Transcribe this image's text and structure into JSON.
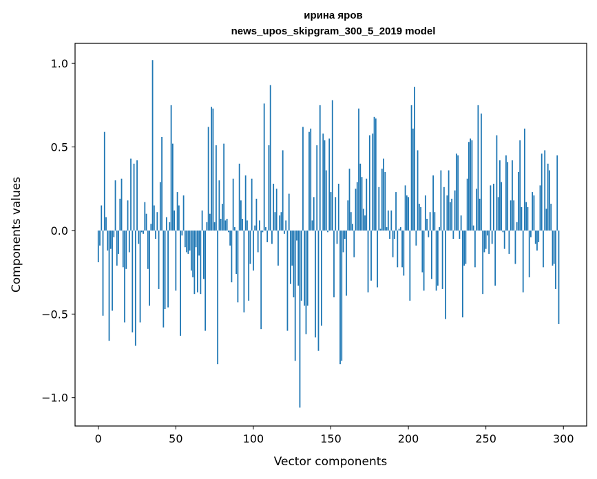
{
  "chart_data": {
    "type": "bar",
    "title": "ирина яров",
    "subtitle": "news_upos_skipgram_300_5_2019 model",
    "xlabel": "Vector components",
    "ylabel": "Components values",
    "xlim": [
      -15,
      315
    ],
    "ylim": [
      -1.17,
      1.12
    ],
    "xticks": [
      0,
      50,
      100,
      150,
      200,
      250,
      300
    ],
    "xtick_labels": [
      "0",
      "50",
      "100",
      "150",
      "200",
      "250",
      "300"
    ],
    "yticks": [
      -1.0,
      -0.5,
      0.0,
      0.5,
      1.0
    ],
    "ytick_labels": [
      "−1.0",
      "−0.5",
      "0.0",
      "0.5",
      "1.0"
    ],
    "grid": false,
    "bar_color": "#1f77b4",
    "x": "0..299",
    "values": [
      -0.19,
      -0.09,
      0.15,
      -0.51,
      0.59,
      0.08,
      -0.12,
      -0.66,
      -0.11,
      -0.48,
      -0.04,
      0.3,
      -0.21,
      -0.14,
      0.19,
      0.31,
      -0.22,
      -0.55,
      -0.23,
      0.18,
      -0.13,
      0.43,
      -0.61,
      0.4,
      -0.69,
      0.42,
      -0.08,
      -0.55,
      -0.01,
      -0.02,
      0.17,
      0.1,
      -0.23,
      -0.45,
      0.04,
      1.02,
      0.15,
      -0.05,
      0.11,
      -0.35,
      0.29,
      0.56,
      -0.58,
      -0.47,
      0.08,
      -0.46,
      0.05,
      0.75,
      0.52,
      0.12,
      -0.36,
      0.23,
      0.15,
      -0.63,
      -0.03,
      0.21,
      -0.1,
      -0.13,
      -0.14,
      -0.12,
      -0.24,
      -0.28,
      -0.38,
      -0.1,
      -0.37,
      -0.15,
      -0.38,
      0.12,
      -0.29,
      -0.6,
      0.05,
      0.62,
      0.1,
      0.74,
      0.73,
      0.05,
      0.51,
      -0.8,
      0.3,
      0.07,
      0.16,
      0.52,
      0.06,
      0.07,
      -0.01,
      -0.09,
      -0.31,
      0.31,
      0.02,
      -0.26,
      -0.43,
      0.4,
      0.18,
      0.07,
      -0.49,
      0.33,
      0.06,
      -0.42,
      -0.2,
      0.31,
      -0.24,
      0.03,
      0.19,
      -0.13,
      0.06,
      -0.59,
      -0.01,
      0.76,
      0.02,
      -0.07,
      0.51,
      0.87,
      -0.08,
      0.28,
      0.11,
      0.25,
      -0.21,
      0.09,
      0.11,
      0.48,
      -0.02,
      0.06,
      -0.6,
      0.22,
      -0.32,
      -0.21,
      -0.4,
      -0.78,
      -0.06,
      -0.33,
      -1.06,
      -0.42,
      0.62,
      -0.45,
      -0.62,
      -0.45,
      0.59,
      0.61,
      0.06,
      0.2,
      -0.64,
      0.51,
      -0.72,
      0.75,
      -0.57,
      0.58,
      0.54,
      0.36,
      -0.01,
      0.55,
      0.23,
      0.78,
      -0.4,
      0.2,
      -0.08,
      0.28,
      -0.8,
      -0.78,
      -0.13,
      -0.05,
      -0.39,
      0.18,
      0.37,
      0.11,
      0.04,
      -0.16,
      0.25,
      0.29,
      0.73,
      0.4,
      0.32,
      0.13,
      0.09,
      0.31,
      -0.37,
      0.57,
      -0.3,
      0.58,
      0.68,
      0.67,
      -0.34,
      0.26,
      0.01,
      0.37,
      0.43,
      0.35,
      0.02,
      0.12,
      -0.05,
      0.12,
      -0.16,
      -0.05,
      0.23,
      -0.22,
      0.01,
      0.02,
      -0.22,
      -0.27,
      0.27,
      0.21,
      0.2,
      -0.42,
      0.75,
      0.61,
      0.86,
      -0.09,
      0.48,
      0.16,
      0.14,
      -0.25,
      -0.36,
      0.21,
      0.07,
      -0.04,
      0.11,
      -0.29,
      0.33,
      0.11,
      -0.36,
      -0.33,
      0.02,
      0.36,
      -0.35,
      0.26,
      -0.53,
      0.21,
      0.36,
      0.17,
      0.19,
      -0.05,
      0.24,
      0.46,
      0.45,
      -0.05,
      0.09,
      -0.52,
      -0.21,
      -0.2,
      0.31,
      0.53,
      0.55,
      0.54,
      0.03,
      -0.22,
      0.25,
      0.75,
      0.19,
      0.7,
      -0.38,
      -0.13,
      -0.11,
      -0.03,
      -0.14,
      0.27,
      -0.08,
      0.28,
      -0.33,
      0.57,
      0.2,
      0.42,
      0.29,
      -0.01,
      -0.11,
      0.45,
      0.41,
      -0.14,
      0.18,
      0.42,
      0.18,
      -0.2,
      0.05,
      0.35,
      0.54,
      0.14,
      -0.37,
      0.61,
      0.17,
      0.14,
      -0.28,
      -0.04,
      0.23,
      0.21,
      -0.08,
      -0.12,
      -0.07,
      0.27,
      0.46,
      -0.22,
      0.48,
      0.13,
      0.4,
      0.36,
      0.16,
      -0.21,
      -0.2,
      -0.35,
      0.45,
      -0.56
    ]
  }
}
